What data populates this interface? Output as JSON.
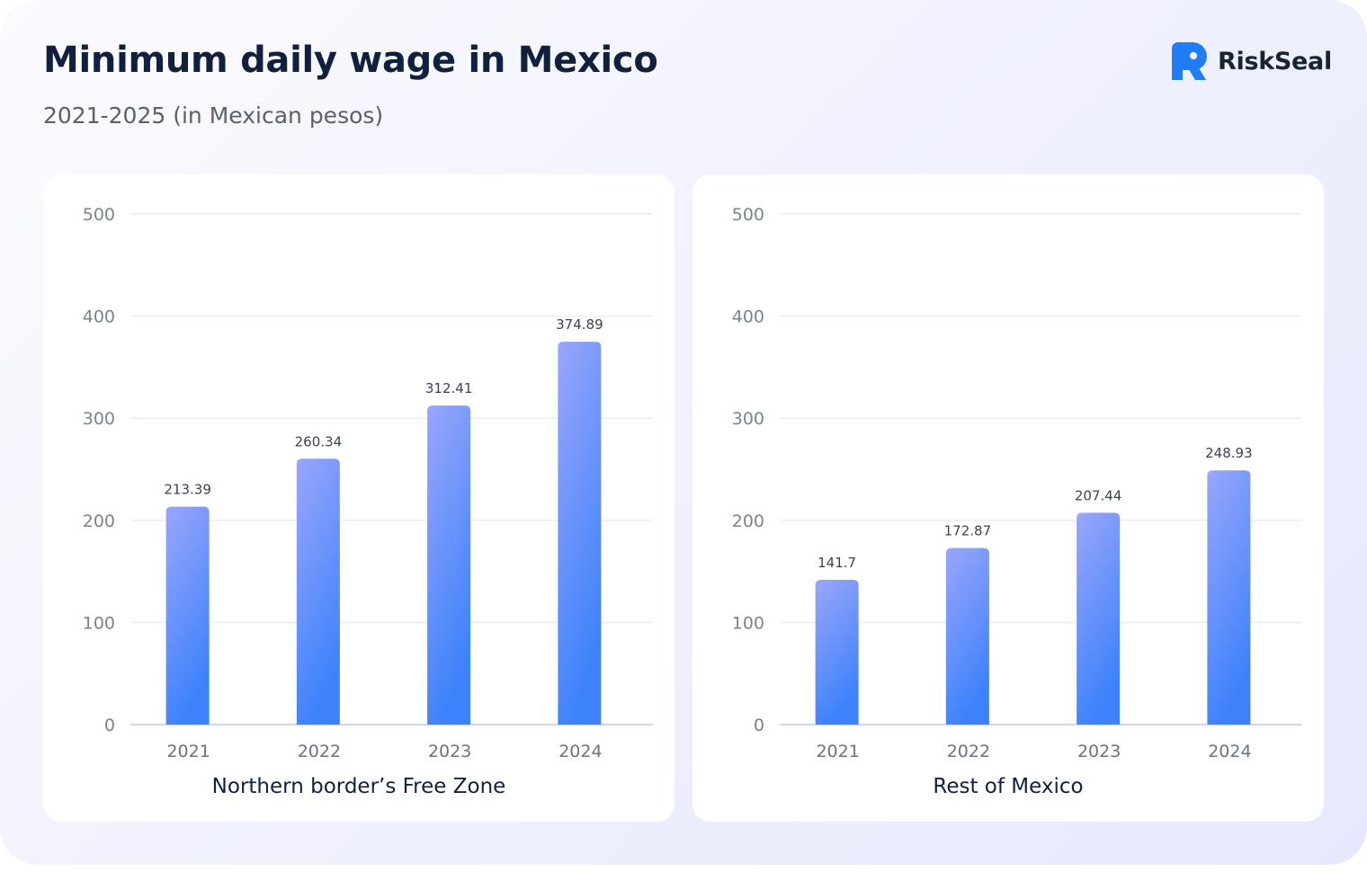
{
  "header": {
    "title": "Minimum daily wage in Mexico",
    "subtitle": "2021-2025 (in Mexican pesos)",
    "brand": "RiskSeal"
  },
  "colors": {
    "bar_top": "#9aa6fb",
    "bar_bottom": "#3d82fb",
    "grid": "#eef0f5",
    "axis": "#c9d8f0",
    "brand_icon": "#1f7ef7"
  },
  "chart_data": [
    {
      "type": "bar",
      "title": "Northern border’s Free Zone",
      "categories": [
        "2021",
        "2022",
        "2023",
        "2024"
      ],
      "values": [
        213.39,
        260.34,
        312.41,
        374.89
      ],
      "value_labels": [
        "213.39",
        "260.34",
        "312.41",
        "374.89"
      ],
      "ylim": [
        0,
        500
      ],
      "yticks": [
        0,
        100,
        200,
        300,
        400,
        500
      ],
      "grid": true
    },
    {
      "type": "bar",
      "title": "Rest of Mexico",
      "categories": [
        "2021",
        "2022",
        "2023",
        "2024"
      ],
      "values": [
        141.7,
        172.87,
        207.44,
        248.93
      ],
      "value_labels": [
        "141.7",
        "172.87",
        "207.44",
        "248.93"
      ],
      "ylim": [
        0,
        500
      ],
      "yticks": [
        0,
        100,
        200,
        300,
        400,
        500
      ],
      "grid": true
    }
  ]
}
